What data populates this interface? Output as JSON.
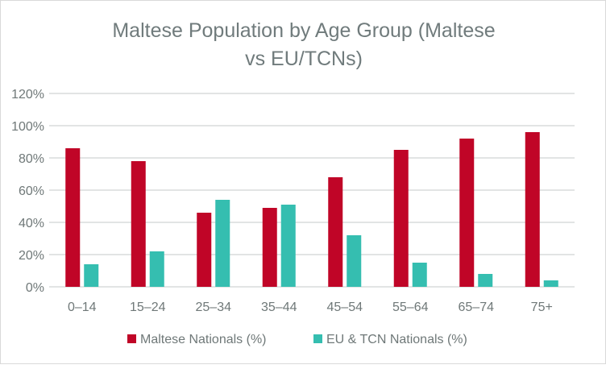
{
  "chart_data": {
    "type": "bar",
    "title_lines": [
      "Maltese Population by Age Group (Maltese",
      "vs EU/TCNs)"
    ],
    "categories": [
      "0–14",
      "15–24",
      "25–34",
      "35–44",
      "45–54",
      "55–64",
      "65–74",
      "75+"
    ],
    "series": [
      {
        "name": "Maltese Nationals (%)",
        "color": "#C00527",
        "values": [
          86,
          78,
          46,
          49,
          68,
          85,
          92,
          96
        ]
      },
      {
        "name": "EU & TCN Nationals (%)",
        "color": "#35BEB0",
        "values": [
          14,
          22,
          54,
          51,
          32,
          15,
          8,
          4
        ]
      }
    ],
    "yticks": [
      "0%",
      "20%",
      "40%",
      "60%",
      "80%",
      "100%",
      "120%"
    ],
    "ytick_values": [
      0,
      20,
      40,
      60,
      80,
      100,
      120
    ],
    "ylim": [
      0,
      120
    ],
    "grid": true,
    "legend": "bottom",
    "xlabel": "",
    "ylabel": ""
  }
}
